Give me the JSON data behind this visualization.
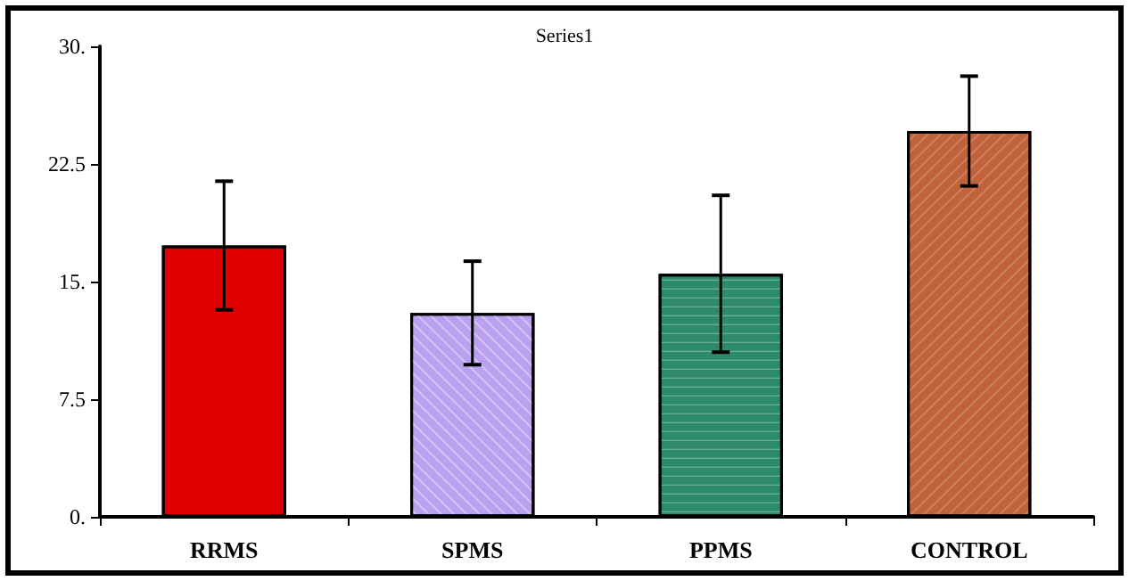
{
  "chart_data": {
    "type": "bar",
    "title": "Series1",
    "categories": [
      "RRMS",
      "SPMS",
      "PPMS",
      "CONTROL"
    ],
    "values": [
      17.3,
      13.0,
      15.5,
      24.6
    ],
    "colors": [
      "#e00000",
      "#b9a0f0",
      "#2e8b6a",
      "#c0623a"
    ],
    "errors": [
      4.1,
      3.3,
      5.0,
      3.5
    ],
    "ylim": [
      0,
      30
    ],
    "yticks": [
      {
        "value": 0,
        "label": "0."
      },
      {
        "value": 7.5,
        "label": "7.5"
      },
      {
        "value": 15,
        "label": "15."
      },
      {
        "value": 22.5,
        "label": "22.5"
      },
      {
        "value": 30,
        "label": "30."
      }
    ],
    "grid": false
  }
}
